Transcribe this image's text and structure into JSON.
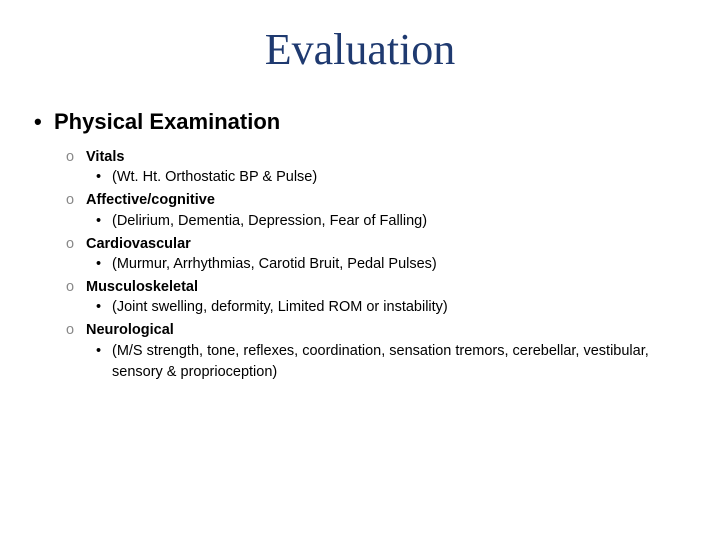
{
  "slide": {
    "title": "Evaluation",
    "title_color": "#1f3a70",
    "title_fontsize": 44,
    "heading": "Physical Examination",
    "heading_fontsize": 22,
    "heading_color": "#000000",
    "section_label_fontsize": 14.5,
    "section_detail_fontsize": 14.5,
    "bullet_o_color": "#888888",
    "text_color": "#000000",
    "background_color": "#ffffff",
    "corner_dot_color": "#b0b0b0",
    "sections": [
      {
        "label": "Vitals",
        "detail": "(Wt. Ht. Orthostatic BP & Pulse)"
      },
      {
        "label": "Affective/cognitive",
        "detail": "(Delirium, Dementia, Depression, Fear of Falling)"
      },
      {
        "label": "Cardiovascular",
        "detail": "(Murmur, Arrhythmias, Carotid Bruit, Pedal Pulses)"
      },
      {
        "label": "Musculoskeletal",
        "detail": "(Joint swelling, deformity, Limited ROM or instability)"
      },
      {
        "label": "Neurological",
        "detail": "(M/S strength, tone, reflexes, coordination, sensation tremors, cerebellar, vestibular, sensory & proprioception)"
      }
    ]
  }
}
